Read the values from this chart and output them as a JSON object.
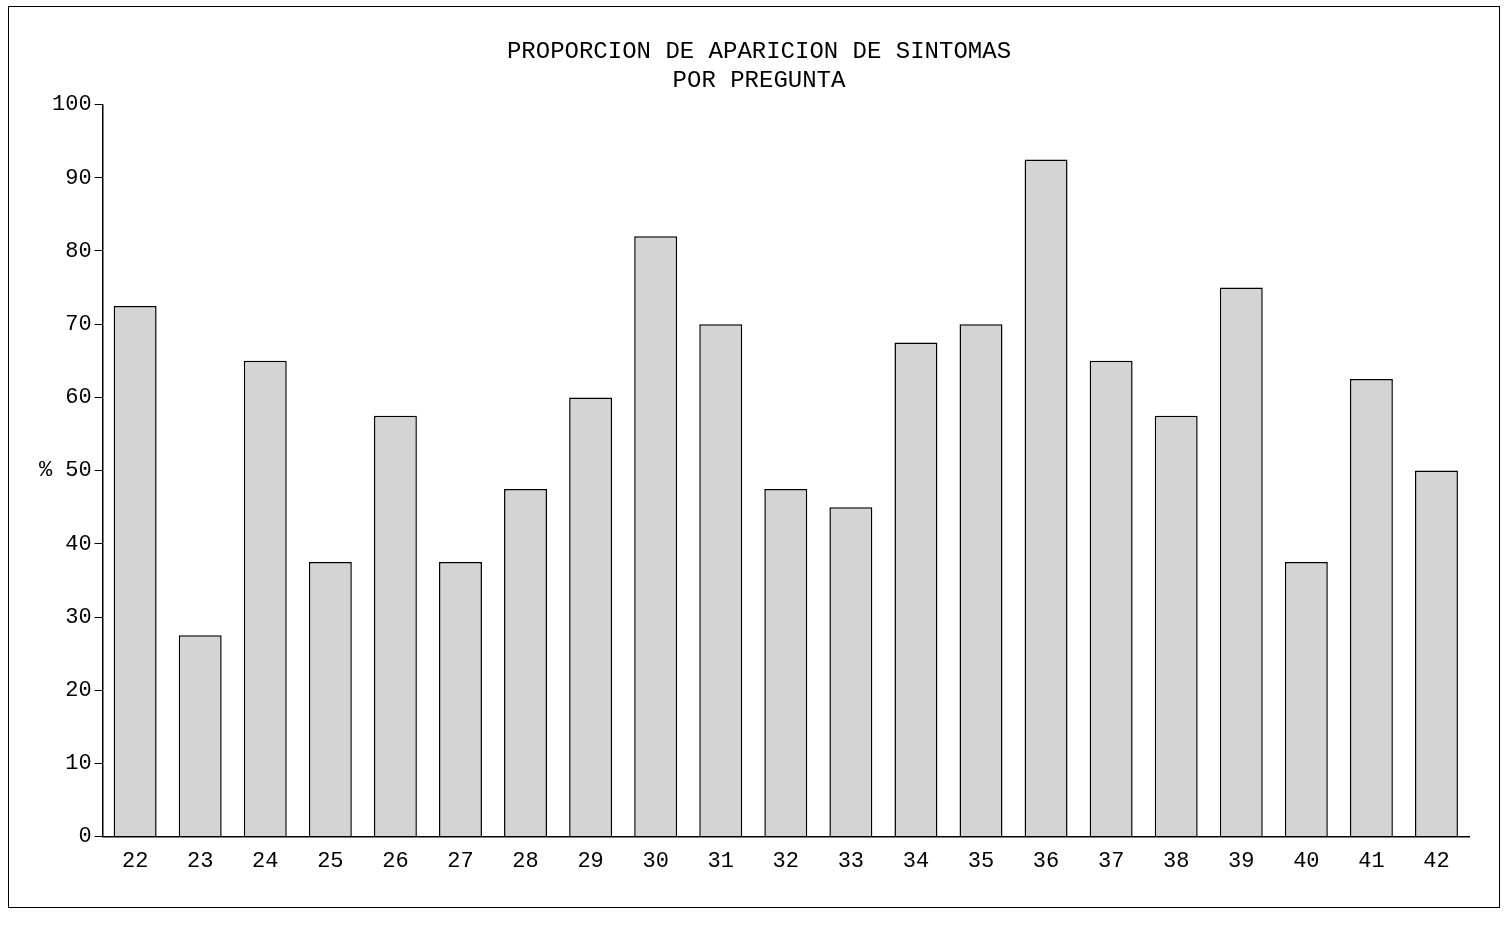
{
  "chart_data": {
    "type": "bar",
    "title": "PROPORCION DE APARICION DE SINTOMAS\nPOR PREGUNTA",
    "ylabel": "%",
    "categories": [
      "22",
      "23",
      "24",
      "25",
      "26",
      "27",
      "28",
      "29",
      "30",
      "31",
      "32",
      "33",
      "34",
      "35",
      "36",
      "37",
      "38",
      "39",
      "40",
      "41",
      "42"
    ],
    "values": [
      72.5,
      27.5,
      65,
      37.5,
      57.5,
      37.5,
      47.5,
      60,
      82,
      70,
      47.5,
      45,
      67.5,
      70,
      92.5,
      65,
      57.5,
      75,
      37.5,
      62.5,
      50
    ],
    "color": "#d4d4d4",
    "ylim": [
      0,
      100
    ],
    "yticks": [
      0,
      10,
      20,
      30,
      40,
      50,
      60,
      70,
      80,
      90,
      100
    ],
    "grid": false,
    "legend": false
  }
}
